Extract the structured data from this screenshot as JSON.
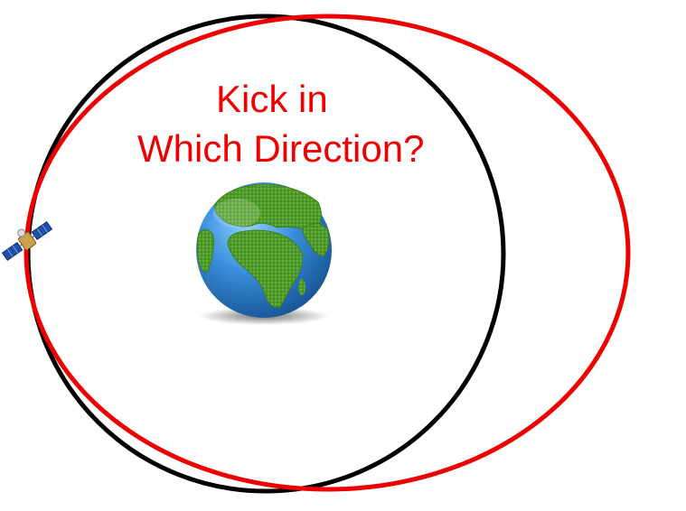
{
  "title": {
    "line1": "Kick in",
    "line2": "Which Direction?"
  },
  "colors": {
    "text": "#ee0000",
    "original_orbit": "#000000",
    "new_orbit": "#ee0000",
    "ocean": "#2f86d6",
    "land": "#4f9a2c",
    "satellite_panel": "#1f4fa8",
    "satellite_body": "#c9a24a"
  },
  "icons": {
    "earth": "earth-globe-icon",
    "satellite": "satellite-icon"
  }
}
